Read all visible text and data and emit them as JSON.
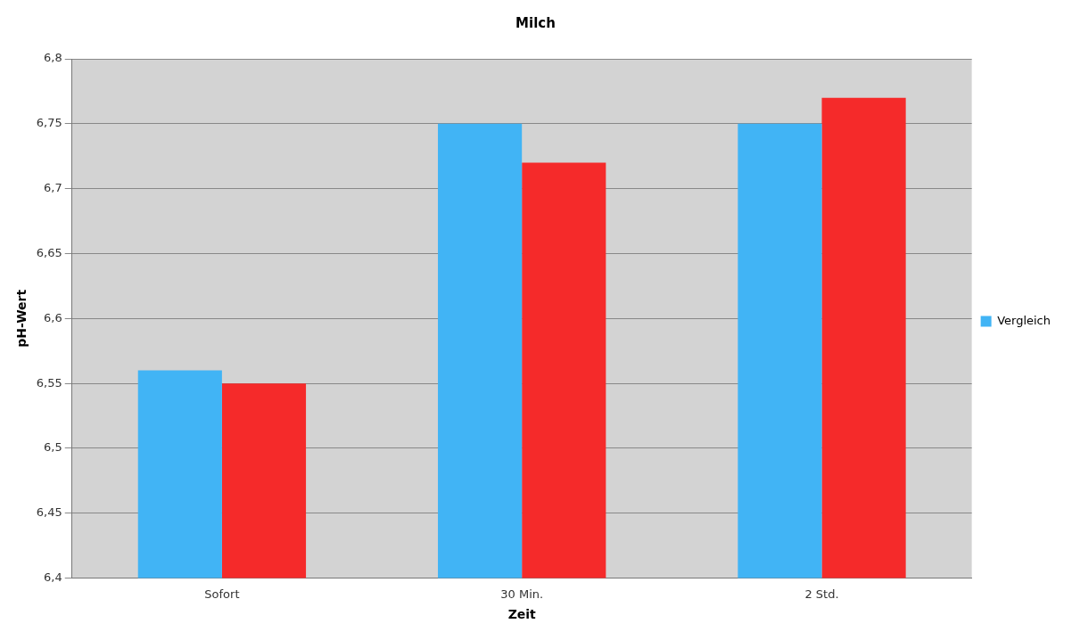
{
  "chart_data": {
    "type": "bar",
    "title": "Milch",
    "xlabel": "Zeit",
    "ylabel": "pH-Wert",
    "categories": [
      "Sofort",
      "30 Min.",
      "2 Std."
    ],
    "series": [
      {
        "name": "Vergleich",
        "color": "#41b4f5",
        "values": [
          6.56,
          6.75,
          6.75
        ]
      },
      {
        "color": "#f52a2a",
        "values": [
          6.55,
          6.72,
          6.77
        ]
      }
    ],
    "ylim": [
      6.4,
      6.8
    ],
    "yticks": [
      {
        "value": 6.4,
        "label": "6,4"
      },
      {
        "value": 6.45,
        "label": "6,45"
      },
      {
        "value": 6.5,
        "label": "6,5"
      },
      {
        "value": 6.55,
        "label": "6,55"
      },
      {
        "value": 6.6,
        "label": "6,6"
      },
      {
        "value": 6.65,
        "label": "6,65"
      },
      {
        "value": 6.7,
        "label": "6,7"
      },
      {
        "value": 6.75,
        "label": "6,75"
      },
      {
        "value": 6.8,
        "label": "6,8"
      }
    ],
    "grid": "y",
    "legend": "right"
  }
}
